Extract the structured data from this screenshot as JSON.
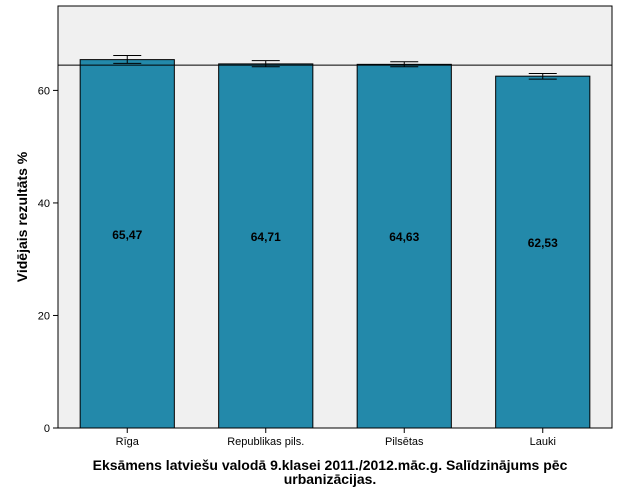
{
  "chart_data": {
    "type": "bar",
    "categories": [
      "Rīga",
      "Republikas pils.",
      "Pilsētas",
      "Lauki"
    ],
    "values": [
      65.47,
      64.71,
      64.63,
      62.53
    ],
    "value_labels": [
      "65,47",
      "64,71",
      "64,63",
      "62,53"
    ],
    "error_bars": [
      {
        "low": 64.8,
        "high": 66.2
      },
      {
        "low": 64.2,
        "high": 65.3
      },
      {
        "low": 64.2,
        "high": 65.1
      },
      {
        "low": 62.0,
        "high": 63.0
      }
    ],
    "reference_line": 64.5,
    "ylim": [
      0,
      75
    ],
    "yticks": [
      0,
      20,
      40,
      60
    ],
    "ytick_labels": [
      "0",
      "20",
      "40",
      "60"
    ],
    "ylabel": "Vidējais rezultāts %",
    "xlabel": "Eksāmens latviešu valodā 9.klasei 2011./2012.māc.g. Salīdzinājums pēc urbanizācijas.",
    "bar_color": "#2389aa",
    "plot_background": "#f0f0f0",
    "grid": false,
    "legend": "none"
  }
}
